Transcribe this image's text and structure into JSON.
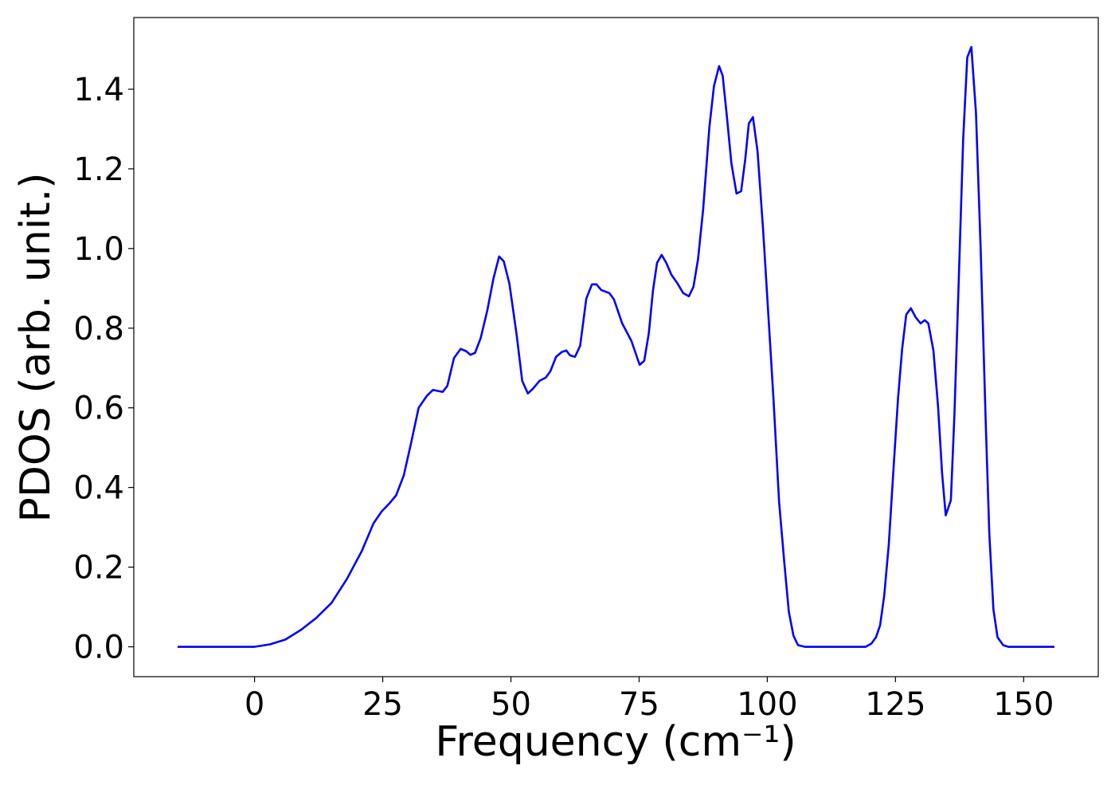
{
  "chart_data": {
    "type": "line",
    "xlabel": "Frequency (cm⁻¹)",
    "ylabel": "PDOS (arb. unit.)",
    "xlim": [
      -23.55,
      164.55
    ],
    "ylim": [
      -0.075,
      1.58
    ],
    "xticks": [
      0,
      25,
      50,
      75,
      100,
      125,
      150
    ],
    "yticks": [
      {
        "value": 0,
        "label": "0.0"
      },
      0.2,
      0.4,
      0.6,
      0.8,
      {
        "value": 1,
        "label": "1.0"
      },
      1.2,
      1.4
    ],
    "grid": false,
    "series": [
      {
        "color": "#0000ff",
        "x": [
          -15,
          0,
          3,
          6,
          9,
          12,
          15,
          18,
          20.9,
          23.2,
          24.8,
          26.3,
          27.6,
          29.1,
          30.5,
          32,
          33.6,
          34.8,
          36.7,
          37.6,
          38.9,
          40.2,
          41.3,
          42.1,
          43,
          44.1,
          45.4,
          46.6,
          47.7,
          48.6,
          49.7,
          51.1,
          52.2,
          53.3,
          54.3,
          55.6,
          56.8,
          57.7,
          58.8,
          59.9,
          60.8,
          61.5,
          62.5,
          63.5,
          64.7,
          65.8,
          66.7,
          67.6,
          69.2,
          70.1,
          71.7,
          73.5,
          75.1,
          76,
          76.9,
          77.7,
          78.5,
          79.4,
          80.3,
          81.3,
          82.5,
          83.6,
          84.7,
          85.6,
          86.5,
          87.5,
          88.7,
          89.6,
          90.6,
          91.3,
          92.1,
          93,
          94,
          94.9,
          95.7,
          96.4,
          97.2,
          98.1,
          99.2,
          100.3,
          101.2,
          102.3,
          103.3,
          104.2,
          105.1,
          106,
          107.3,
          119.2,
          120.3,
          121.2,
          122,
          122.8,
          123.7,
          124.6,
          125.5,
          126.3,
          127.1,
          128,
          128.9,
          129.9,
          130.7,
          131.4,
          132.4,
          133.3,
          134.1,
          134.8,
          135.8,
          136.5,
          137.3,
          138.2,
          139,
          139.8,
          140.7,
          141.6,
          142.6,
          143.3,
          144.1,
          144.9,
          146,
          147,
          156
        ],
        "values": [
          0,
          0,
          0.006,
          0.018,
          0.042,
          0.072,
          0.11,
          0.17,
          0.24,
          0.31,
          0.34,
          0.36,
          0.38,
          0.43,
          0.51,
          0.6,
          0.63,
          0.645,
          0.64,
          0.655,
          0.725,
          0.748,
          0.742,
          0.733,
          0.738,
          0.775,
          0.845,
          0.925,
          0.98,
          0.968,
          0.912,
          0.785,
          0.668,
          0.636,
          0.648,
          0.668,
          0.676,
          0.692,
          0.728,
          0.74,
          0.744,
          0.732,
          0.728,
          0.756,
          0.874,
          0.91,
          0.91,
          0.896,
          0.888,
          0.872,
          0.812,
          0.768,
          0.708,
          0.718,
          0.788,
          0.894,
          0.964,
          0.984,
          0.964,
          0.934,
          0.912,
          0.888,
          0.88,
          0.904,
          0.974,
          1.1,
          1.304,
          1.408,
          1.458,
          1.434,
          1.334,
          1.214,
          1.138,
          1.144,
          1.224,
          1.314,
          1.33,
          1.244,
          1.044,
          0.814,
          0.624,
          0.364,
          0.214,
          0.088,
          0.028,
          0.004,
          0,
          0,
          0.008,
          0.024,
          0.054,
          0.128,
          0.258,
          0.444,
          0.624,
          0.748,
          0.834,
          0.85,
          0.828,
          0.812,
          0.82,
          0.812,
          0.744,
          0.604,
          0.434,
          0.33,
          0.368,
          0.584,
          0.904,
          1.274,
          1.48,
          1.506,
          1.34,
          1.004,
          0.564,
          0.284,
          0.094,
          0.024,
          0.004,
          0,
          0
        ]
      }
    ]
  }
}
